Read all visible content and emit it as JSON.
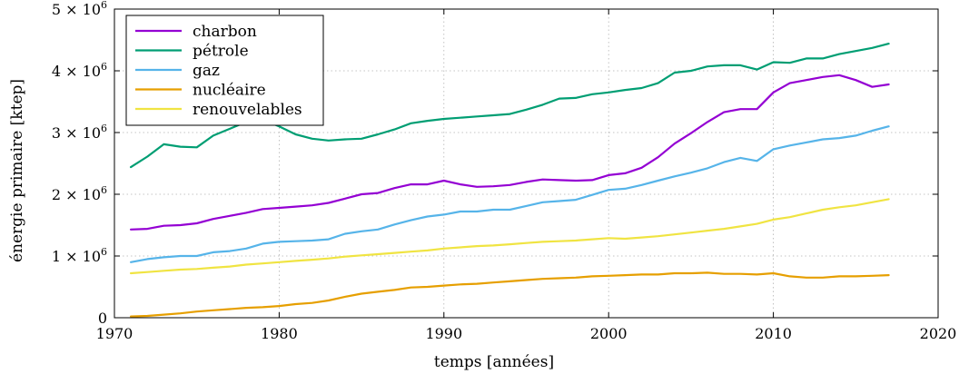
{
  "chart_data": {
    "type": "line",
    "xlabel": "temps [années]",
    "ylabel": "énergie primaire [ktep]",
    "xlim": [
      1970,
      2020
    ],
    "ylim": [
      0,
      5000000
    ],
    "grid": true,
    "legend_position": "top-left",
    "x_ticks": [
      "1970",
      "1980",
      "1990",
      "2000",
      "2010",
      "2020"
    ],
    "x_tick_values": [
      1970,
      1980,
      1990,
      2000,
      2010,
      2020
    ],
    "y_ticks": [
      {
        "value": 0,
        "mantissa": "0",
        "base": "",
        "exp": ""
      },
      {
        "value": 1000000,
        "mantissa": "1 × ",
        "base": "10",
        "exp": "6"
      },
      {
        "value": 2000000,
        "mantissa": "2 × ",
        "base": "10",
        "exp": "6"
      },
      {
        "value": 3000000,
        "mantissa": "3 × ",
        "base": "10",
        "exp": "6"
      },
      {
        "value": 4000000,
        "mantissa": "4 × ",
        "base": "10",
        "exp": "6"
      },
      {
        "value": 5000000,
        "mantissa": "5 × ",
        "base": "10",
        "exp": "6"
      }
    ],
    "x": [
      1971,
      1972,
      1973,
      1974,
      1975,
      1976,
      1977,
      1978,
      1979,
      1980,
      1981,
      1982,
      1983,
      1984,
      1985,
      1986,
      1987,
      1988,
      1989,
      1990,
      1991,
      1992,
      1993,
      1994,
      1995,
      1996,
      1997,
      1998,
      1999,
      2000,
      2001,
      2002,
      2003,
      2004,
      2005,
      2006,
      2007,
      2008,
      2009,
      2010,
      2011,
      2012,
      2013,
      2014,
      2015,
      2016,
      2017
    ],
    "series": [
      {
        "name": "charbon",
        "color": "#9400d3",
        "values": [
          1430000,
          1440000,
          1490000,
          1500000,
          1530000,
          1600000,
          1650000,
          1700000,
          1760000,
          1780000,
          1800000,
          1820000,
          1860000,
          1930000,
          2000000,
          2020000,
          2100000,
          2160000,
          2160000,
          2220000,
          2160000,
          2120000,
          2130000,
          2150000,
          2200000,
          2240000,
          2230000,
          2220000,
          2230000,
          2310000,
          2340000,
          2430000,
          2600000,
          2820000,
          2990000,
          3170000,
          3330000,
          3380000,
          3380000,
          3650000,
          3800000,
          3850000,
          3900000,
          3930000,
          3850000,
          3740000,
          3780000
        ]
      },
      {
        "name": "pétrole",
        "color": "#009e73",
        "values": [
          2440000,
          2610000,
          2810000,
          2770000,
          2760000,
          2950000,
          3060000,
          3170000,
          3210000,
          3100000,
          2970000,
          2900000,
          2870000,
          2890000,
          2900000,
          2970000,
          3050000,
          3150000,
          3190000,
          3220000,
          3240000,
          3260000,
          3280000,
          3300000,
          3370000,
          3450000,
          3550000,
          3560000,
          3620000,
          3650000,
          3690000,
          3720000,
          3800000,
          3970000,
          4000000,
          4070000,
          4090000,
          4090000,
          4020000,
          4140000,
          4130000,
          4200000,
          4200000,
          4270000,
          4320000,
          4370000,
          4440000
        ]
      },
      {
        "name": "gaz",
        "color": "#56b4e9",
        "values": [
          900000,
          950000,
          980000,
          1000000,
          1000000,
          1060000,
          1080000,
          1120000,
          1200000,
          1230000,
          1240000,
          1250000,
          1270000,
          1360000,
          1400000,
          1430000,
          1510000,
          1580000,
          1640000,
          1670000,
          1720000,
          1720000,
          1750000,
          1750000,
          1810000,
          1870000,
          1890000,
          1910000,
          1990000,
          2070000,
          2090000,
          2150000,
          2220000,
          2290000,
          2350000,
          2420000,
          2520000,
          2590000,
          2540000,
          2730000,
          2790000,
          2840000,
          2890000,
          2910000,
          2950000,
          3030000,
          3100000
        ]
      },
      {
        "name": "nucléaire",
        "color": "#e69f00",
        "values": [
          20000,
          30000,
          50000,
          70000,
          100000,
          120000,
          140000,
          160000,
          170000,
          190000,
          220000,
          240000,
          280000,
          340000,
          390000,
          420000,
          450000,
          490000,
          500000,
          520000,
          540000,
          550000,
          570000,
          590000,
          610000,
          630000,
          640000,
          650000,
          670000,
          680000,
          690000,
          700000,
          700000,
          720000,
          720000,
          730000,
          710000,
          710000,
          700000,
          720000,
          670000,
          650000,
          650000,
          670000,
          670000,
          680000,
          690000
        ]
      },
      {
        "name": "renouvelables",
        "color": "#f0e442",
        "values": [
          720000,
          740000,
          760000,
          780000,
          790000,
          810000,
          830000,
          860000,
          880000,
          900000,
          920000,
          940000,
          960000,
          990000,
          1010000,
          1030000,
          1050000,
          1070000,
          1090000,
          1120000,
          1140000,
          1160000,
          1170000,
          1190000,
          1210000,
          1230000,
          1240000,
          1250000,
          1270000,
          1290000,
          1280000,
          1300000,
          1320000,
          1350000,
          1380000,
          1410000,
          1440000,
          1480000,
          1520000,
          1590000,
          1630000,
          1690000,
          1750000,
          1790000,
          1820000,
          1870000,
          1920000
        ]
      }
    ]
  }
}
